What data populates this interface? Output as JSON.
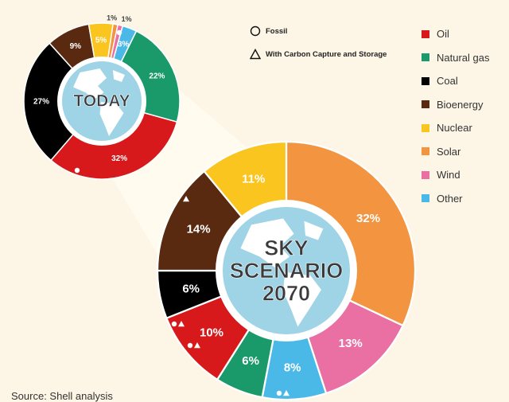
{
  "chart_data": [
    {
      "type": "pie",
      "title": "TODAY",
      "categories": [
        "Other",
        "Natural gas",
        "Oil",
        "Coal",
        "Bioenergy",
        "Nuclear",
        "Solar",
        "Wind"
      ],
      "values": [
        3,
        22,
        32,
        27,
        9,
        5,
        1,
        1
      ],
      "labels": [
        "3%",
        "22%",
        "32%",
        "27%",
        "9%",
        "5%",
        "1%",
        "1%"
      ]
    },
    {
      "type": "pie",
      "title": "SKY SCENARIO 2070",
      "categories": [
        "Solar",
        "Wind",
        "Other",
        "Natural gas",
        "Oil",
        "Coal",
        "Bioenergy",
        "Nuclear"
      ],
      "values": [
        32,
        13,
        8,
        6,
        10,
        6,
        14,
        11
      ],
      "labels": [
        "32%",
        "13%",
        "8%",
        "6%",
        "10%",
        "6%",
        "14%",
        "11%"
      ]
    }
  ],
  "legend": [
    {
      "label": "Oil",
      "color": "#d7191c"
    },
    {
      "label": "Natural gas",
      "color": "#1a9a6b"
    },
    {
      "label": "Coal",
      "color": "#000000"
    },
    {
      "label": "Bioenergy",
      "color": "#5a2a10"
    },
    {
      "label": "Nuclear",
      "color": "#f9c51e"
    },
    {
      "label": "Solar",
      "color": "#f39540"
    },
    {
      "label": "Wind",
      "color": "#ea6fa3"
    },
    {
      "label": "Other",
      "color": "#4bb9e8"
    }
  ],
  "marker_legend": {
    "fossil": "Fossil",
    "ccs": "With Carbon Capture and Storage"
  },
  "source": "Source: Shell analysis"
}
